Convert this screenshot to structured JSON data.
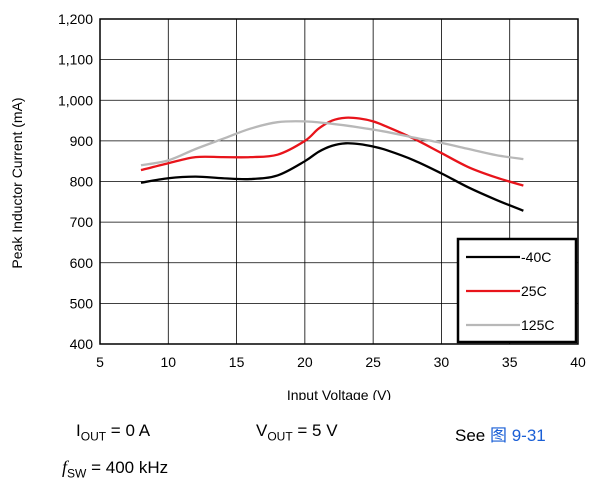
{
  "chart_data": {
    "type": "line",
    "xlabel": "Input Voltage (V)",
    "ylabel": "Peak Inductor Current (mA)",
    "xlim": [
      5,
      40
    ],
    "ylim": [
      400,
      1200
    ],
    "xticks": [
      5,
      10,
      15,
      20,
      25,
      30,
      35,
      40
    ],
    "yticks": [
      400,
      500,
      600,
      700,
      800,
      900,
      1000,
      1100,
      1200
    ],
    "xtick_labels": [
      "5",
      "10",
      "15",
      "20",
      "25",
      "30",
      "35",
      "40"
    ],
    "ytick_labels": [
      "400",
      "500",
      "600",
      "700",
      "800",
      "900",
      "1,000",
      "1,100",
      "1,200"
    ],
    "grid": true,
    "legend_position": "bottom-right",
    "series": [
      {
        "name": "-40C",
        "color": "#000000",
        "x": [
          8,
          10,
          12,
          14,
          16,
          18,
          20,
          21,
          22,
          23,
          24,
          25,
          26,
          28,
          30,
          32,
          34,
          36
        ],
        "y": [
          797,
          808,
          812,
          808,
          806,
          815,
          850,
          873,
          888,
          894,
          892,
          886,
          877,
          852,
          820,
          785,
          755,
          728
        ]
      },
      {
        "name": "25C",
        "color": "#e8141b",
        "x": [
          8,
          10,
          12,
          14,
          16,
          18,
          20,
          21,
          22,
          23,
          24,
          25,
          26,
          28,
          30,
          32,
          34,
          36
        ],
        "y": [
          828,
          845,
          860,
          860,
          860,
          866,
          900,
          930,
          950,
          957,
          955,
          948,
          935,
          905,
          870,
          835,
          810,
          790
        ]
      },
      {
        "name": "125C",
        "color": "#b8b8b8",
        "x": [
          8,
          10,
          12,
          14,
          16,
          18,
          20,
          22,
          24,
          26,
          28,
          30,
          32,
          34,
          36
        ],
        "y": [
          840,
          852,
          880,
          905,
          930,
          946,
          948,
          942,
          933,
          922,
          908,
          895,
          880,
          865,
          855
        ]
      }
    ]
  },
  "conditions": {
    "iout_symbol": "I",
    "iout_sub": "OUT",
    "iout_value": " = 0 A",
    "vout_symbol": "V",
    "vout_sub": "OUT",
    "vout_value": " = 5 V",
    "see_text": "See ",
    "see_link": "图 9-31",
    "fsw_symbol": "f",
    "fsw_sub": "SW",
    "fsw_value": " = 400 kHz"
  }
}
